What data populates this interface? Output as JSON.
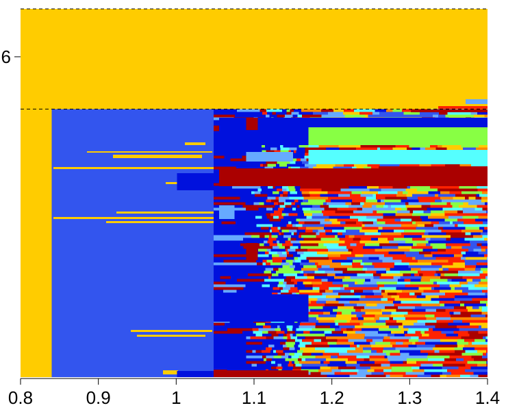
{
  "chart_data": {
    "type": "heatmap",
    "xlim": [
      0.8,
      1.4
    ],
    "x_ticks": [
      {
        "value": 0.8,
        "label": "0.8"
      },
      {
        "value": 0.9,
        "label": "0.9"
      },
      {
        "value": 1.0,
        "label": "1"
      },
      {
        "value": 1.1,
        "label": "1.1"
      },
      {
        "value": 1.2,
        "label": "1.2"
      },
      {
        "value": 1.3,
        "label": "1.3"
      },
      {
        "value": 1.4,
        "label": "1.4"
      }
    ],
    "y_ticks": [
      {
        "value": 0.87,
        "label": "6"
      }
    ],
    "grid": false,
    "colors": {
      "yellow": "#ffcc00",
      "blue": "#3355ee",
      "darkblue": "#0011dd",
      "darkred": "#aa0000",
      "red": "#ff2200",
      "orange": "#ff8800",
      "green": "#88ff44",
      "cyan": "#55ffff",
      "lightblue": "#66aaff"
    },
    "reference_lines": [
      {
        "orientation": "horizontal",
        "y": 1.0,
        "style": "dashed"
      },
      {
        "orientation": "horizontal",
        "y": 0.728,
        "style": "dashed"
      }
    ],
    "regions": [
      {
        "x": [
          0.8,
          1.4
        ],
        "y": [
          0.728,
          1.0
        ],
        "color": "yellow"
      },
      {
        "x": [
          0.8,
          0.84
        ],
        "y": [
          0.0,
          0.728
        ],
        "color": "yellow"
      },
      {
        "x": [
          0.84,
          1.048
        ],
        "y": [
          0.0,
          0.728
        ],
        "color": "blue"
      },
      {
        "x": [
          1.048,
          1.4
        ],
        "y": [
          0.0,
          0.728
        ],
        "color": "mixed"
      }
    ]
  }
}
